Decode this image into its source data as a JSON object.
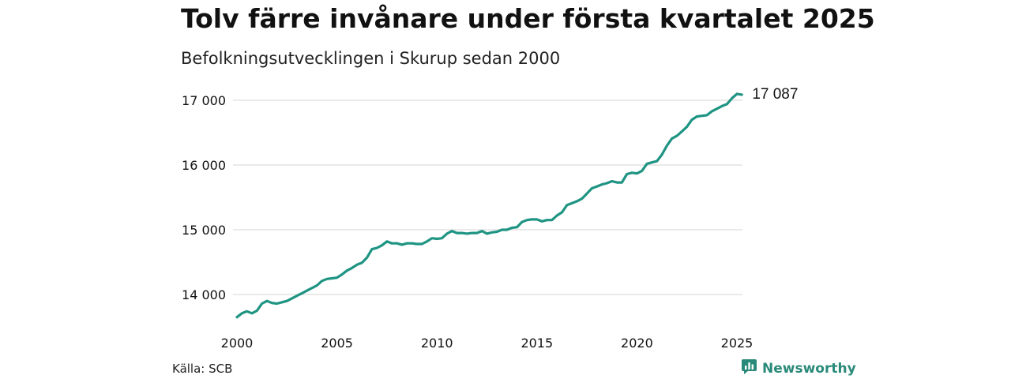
{
  "header": {
    "title": "Tolv färre invånare under första kvartalet 2025",
    "subtitle": "Befolkningsutvecklingen i Skurup sedan 2000"
  },
  "footer": {
    "source": "Källa: SCB",
    "brand": "Newsworthy"
  },
  "colors": {
    "line": "#1f9483",
    "grid": "#dddddd",
    "brand": "#2a8a7a"
  },
  "icons": {
    "brand_logo": "bar-chart-chat-icon"
  },
  "chart_data": {
    "type": "line",
    "title": "Tolv färre invånare under första kvartalet 2025",
    "subtitle": "Befolkningsutvecklingen i Skurup sedan 2000",
    "xlabel": "",
    "ylabel": "",
    "xlim": [
      2000,
      2025
    ],
    "ylim": [
      13600,
      17150
    ],
    "x_ticks": [
      2000,
      2005,
      2010,
      2015,
      2020,
      2025
    ],
    "x_tick_labels": [
      "2000",
      "2005",
      "2010",
      "2015",
      "2020",
      "2025"
    ],
    "y_ticks": [
      14000,
      15000,
      16000,
      17000
    ],
    "y_tick_labels": [
      "14 000",
      "15 000",
      "16 000",
      "17 000"
    ],
    "grid": "horizontal",
    "legend": "none",
    "end_label": "17 087",
    "series": [
      {
        "points": [
          [
            2000.0,
            13650
          ],
          [
            2000.25,
            13710
          ],
          [
            2000.5,
            13740
          ],
          [
            2000.75,
            13710
          ],
          [
            2001.0,
            13750
          ],
          [
            2001.25,
            13860
          ],
          [
            2001.5,
            13900
          ],
          [
            2001.75,
            13870
          ],
          [
            2002.0,
            13860
          ],
          [
            2002.25,
            13880
          ],
          [
            2002.5,
            13900
          ],
          [
            2002.75,
            13940
          ],
          [
            2003.0,
            13980
          ],
          [
            2003.25,
            14020
          ],
          [
            2003.5,
            14060
          ],
          [
            2003.75,
            14100
          ],
          [
            2004.0,
            14140
          ],
          [
            2004.25,
            14210
          ],
          [
            2004.5,
            14240
          ],
          [
            2004.75,
            14250
          ],
          [
            2005.0,
            14260
          ],
          [
            2005.25,
            14310
          ],
          [
            2005.5,
            14370
          ],
          [
            2005.75,
            14410
          ],
          [
            2006.0,
            14460
          ],
          [
            2006.25,
            14490
          ],
          [
            2006.5,
            14570
          ],
          [
            2006.75,
            14700
          ],
          [
            2007.0,
            14720
          ],
          [
            2007.25,
            14760
          ],
          [
            2007.5,
            14820
          ],
          [
            2007.75,
            14790
          ],
          [
            2008.0,
            14790
          ],
          [
            2008.25,
            14770
          ],
          [
            2008.5,
            14790
          ],
          [
            2008.75,
            14790
          ],
          [
            2009.0,
            14780
          ],
          [
            2009.25,
            14780
          ],
          [
            2009.5,
            14820
          ],
          [
            2009.75,
            14870
          ],
          [
            2010.0,
            14860
          ],
          [
            2010.25,
            14870
          ],
          [
            2010.5,
            14940
          ],
          [
            2010.75,
            14980
          ],
          [
            2011.0,
            14950
          ],
          [
            2011.25,
            14950
          ],
          [
            2011.5,
            14940
          ],
          [
            2011.75,
            14950
          ],
          [
            2012.0,
            14950
          ],
          [
            2012.25,
            14980
          ],
          [
            2012.5,
            14940
          ],
          [
            2012.75,
            14960
          ],
          [
            2013.0,
            14970
          ],
          [
            2013.25,
            15000
          ],
          [
            2013.5,
            15000
          ],
          [
            2013.75,
            15030
          ],
          [
            2014.0,
            15040
          ],
          [
            2014.25,
            15120
          ],
          [
            2014.5,
            15150
          ],
          [
            2014.75,
            15160
          ],
          [
            2015.0,
            15160
          ],
          [
            2015.25,
            15130
          ],
          [
            2015.5,
            15150
          ],
          [
            2015.75,
            15150
          ],
          [
            2016.0,
            15220
          ],
          [
            2016.25,
            15270
          ],
          [
            2016.5,
            15380
          ],
          [
            2016.75,
            15410
          ],
          [
            2017.0,
            15440
          ],
          [
            2017.25,
            15480
          ],
          [
            2017.5,
            15560
          ],
          [
            2017.75,
            15640
          ],
          [
            2018.0,
            15670
          ],
          [
            2018.25,
            15700
          ],
          [
            2018.5,
            15720
          ],
          [
            2018.75,
            15750
          ],
          [
            2019.0,
            15730
          ],
          [
            2019.25,
            15730
          ],
          [
            2019.5,
            15860
          ],
          [
            2019.75,
            15880
          ],
          [
            2020.0,
            15870
          ],
          [
            2020.25,
            15910
          ],
          [
            2020.5,
            16020
          ],
          [
            2020.75,
            16040
          ],
          [
            2021.0,
            16060
          ],
          [
            2021.25,
            16160
          ],
          [
            2021.5,
            16300
          ],
          [
            2021.75,
            16410
          ],
          [
            2022.0,
            16450
          ],
          [
            2022.25,
            16520
          ],
          [
            2022.5,
            16590
          ],
          [
            2022.75,
            16700
          ],
          [
            2023.0,
            16750
          ],
          [
            2023.25,
            16760
          ],
          [
            2023.5,
            16770
          ],
          [
            2023.75,
            16830
          ],
          [
            2024.0,
            16870
          ],
          [
            2024.25,
            16910
          ],
          [
            2024.5,
            16940
          ],
          [
            2024.75,
            17030
          ],
          [
            2025.0,
            17099
          ],
          [
            2025.25,
            17087
          ]
        ]
      }
    ]
  }
}
